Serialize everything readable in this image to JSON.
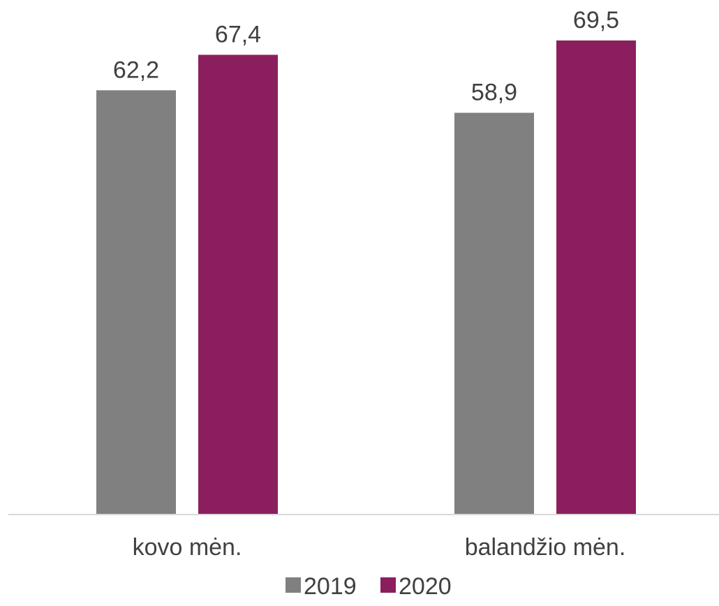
{
  "chart_data": {
    "type": "bar",
    "categories": [
      "kovo mėn.",
      "balandžio mėn."
    ],
    "series": [
      {
        "name": "2019",
        "values": [
          62.2,
          58.9
        ],
        "labels": [
          "62,2",
          "58,9"
        ],
        "color": "#808080"
      },
      {
        "name": "2020",
        "values": [
          67.4,
          69.5
        ],
        "labels": [
          "67,4",
          "69,5"
        ],
        "color": "#8B1F5E"
      }
    ],
    "title": "",
    "xlabel": "",
    "ylabel": "",
    "ylim": [
      0,
      72
    ],
    "grid": false,
    "legend": "bottom",
    "axis_color": "#D9D9D9"
  }
}
